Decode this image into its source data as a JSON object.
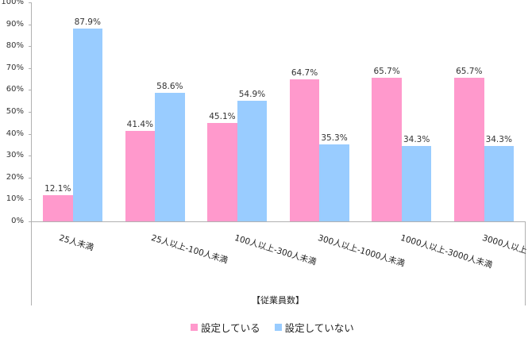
{
  "chart_data": {
    "type": "bar",
    "title": "",
    "xlabel": "【従業員数】",
    "ylabel": "",
    "ylim": [
      0,
      100
    ],
    "yticks": [
      "0%",
      "10%",
      "20%",
      "30%",
      "40%",
      "50%",
      "60%",
      "70%",
      "80%",
      "90%",
      "100%"
    ],
    "categories": [
      "25人未満",
      "25人以上-100人未満",
      "100人以上-300人未満",
      "300人以上-1000人未満",
      "1000人以上-3000人未満",
      "3000人以上"
    ],
    "series": [
      {
        "name": "設定している",
        "color": "#ff99cc",
        "values": [
          12.1,
          41.4,
          45.1,
          64.7,
          65.7,
          65.7
        ],
        "labels": [
          "12.1%",
          "41.4%",
          "45.1%",
          "64.7%",
          "65.7%",
          "65.7%"
        ]
      },
      {
        "name": "設定していない",
        "color": "#99ccff",
        "values": [
          87.9,
          58.6,
          54.9,
          35.3,
          34.3,
          34.3
        ],
        "labels": [
          "87.9%",
          "58.6%",
          "54.9%",
          "35.3%",
          "34.3%",
          "34.3%"
        ]
      }
    ],
    "legend_position": "bottom",
    "grid": false
  }
}
